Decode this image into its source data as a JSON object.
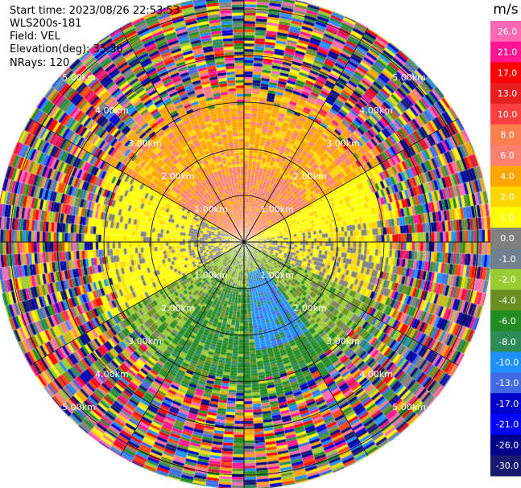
{
  "header": {
    "start_time": "Start time: 2023/08/26 22:53:53",
    "instrument": "WLS200s-181",
    "field": "Field: VEL",
    "elevation": "Elevation(deg): 35.30",
    "nrays": "NRays: 120"
  },
  "chart_data": {
    "type": "heatmap",
    "projection": "polar PPI",
    "field": "VEL",
    "units": "m/s",
    "nrays": 120,
    "range_rings_km": [
      1.0,
      2.0,
      3.0,
      4.0,
      5.0
    ],
    "max_range_km": 5.3,
    "spokes_deg": [
      0,
      30,
      60,
      90,
      120,
      150,
      180,
      210,
      240,
      270,
      300,
      330
    ],
    "ring_labels": [
      "1.00km",
      "2.00km",
      "3.00km",
      "4.00km",
      "5.00km"
    ],
    "colorbar": {
      "label": "m/s",
      "ticks": [
        "26.0",
        "21.0",
        "17.0",
        "13.0",
        "10.0",
        "8.0",
        "6.0",
        "4.0",
        "2.0",
        "1.0",
        "0.0",
        "-1.0",
        "-2.0",
        "-4.0",
        "-6.0",
        "-8.0",
        "-10.0",
        "-13.0",
        "-17.0",
        "-21.0",
        "-26.0",
        "-30.0"
      ],
      "colors": [
        "#ff69b4",
        "#ff1493",
        "#ff0000",
        "#e82020",
        "#ff4040",
        "#ff7f50",
        "#fa8072",
        "#ffa500",
        "#ffd700",
        "#ffff00",
        "#808080",
        "#708090",
        "#9acd32",
        "#6b8e23",
        "#228b22",
        "#2e8b57",
        "#1e90ff",
        "#4169e1",
        "#0000cd",
        "#0000ff",
        "#00008b",
        "#191970"
      ]
    },
    "sectors": [
      {
        "direction": "north",
        "azimuth_range_deg": [
          -60,
          60
        ],
        "range_km": [
          0.3,
          3.3
        ],
        "velocity_m_s": [
          6.0,
          8.0
        ]
      },
      {
        "direction": "west",
        "azimuth_range_deg": [
          240,
          300
        ],
        "range_km": [
          0.3,
          2.8
        ],
        "velocity_m_s": [
          1.0,
          2.0
        ]
      },
      {
        "direction": "east",
        "azimuth_range_deg": [
          60,
          110
        ],
        "range_km": [
          0.3,
          2.5
        ],
        "velocity_m_s": [
          0.0,
          2.0
        ]
      },
      {
        "direction": "south",
        "azimuth_range_deg": [
          120,
          240
        ],
        "range_km": [
          0.3,
          3.3
        ],
        "velocity_m_s": [
          -6.0,
          -2.0
        ]
      },
      {
        "direction": "south-southeast",
        "azimuth_range_deg": [
          145,
          175
        ],
        "range_km": [
          0.6,
          2.3
        ],
        "velocity_m_s": [
          -10.0,
          -8.0
        ]
      },
      {
        "direction": "all",
        "azimuth_range_deg": [
          0,
          360
        ],
        "range_km": [
          3.3,
          5.3
        ],
        "velocity_m_s": "noise"
      }
    ]
  }
}
